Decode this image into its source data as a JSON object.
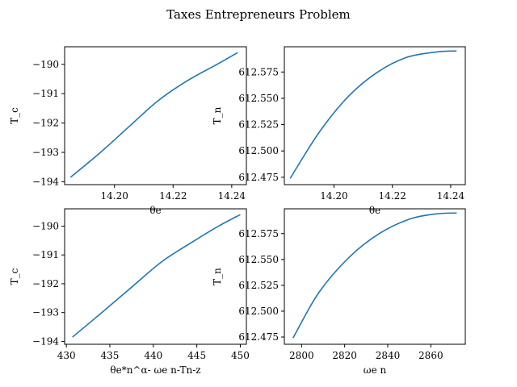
{
  "suptitle": "Taxes Entrepreneurs Problem",
  "colors": {
    "series": "#1f77b4",
    "axes": "#000000",
    "background": "#ffffff"
  },
  "chart_data": [
    {
      "type": "line",
      "xlabel": "θe",
      "ylabel": "T_c",
      "xlim": [
        14.183,
        14.245
      ],
      "ylim": [
        -194.1,
        -189.4
      ],
      "xticks": [
        "14.20",
        "14.22",
        "14.24"
      ],
      "xtick_values": [
        14.2,
        14.22,
        14.24
      ],
      "yticks": [
        "−190",
        "−191",
        "−192",
        "−193",
        "−194"
      ],
      "ytick_values": [
        -190,
        -191,
        -192,
        -193,
        -194
      ],
      "grid": false,
      "series": [
        {
          "x": [
            14.185,
            14.195,
            14.205,
            14.215,
            14.225,
            14.235,
            14.242
          ],
          "y": [
            -193.85,
            -193.02,
            -192.12,
            -191.23,
            -190.55,
            -190.0,
            -189.6
          ]
        }
      ]
    },
    {
      "type": "line",
      "xlabel": "θe",
      "ylabel": "T_n",
      "xlim": [
        14.183,
        14.245
      ],
      "ylim": [
        612.468,
        612.599
      ],
      "xticks": [
        "14.20",
        "14.22",
        "14.24"
      ],
      "xtick_values": [
        14.2,
        14.22,
        14.24
      ],
      "yticks": [
        "612.575",
        "612.550",
        "612.525",
        "612.500",
        "612.475"
      ],
      "ytick_values": [
        612.575,
        612.55,
        612.525,
        612.5,
        612.475
      ],
      "grid": false,
      "series": [
        {
          "x": [
            14.185,
            14.195,
            14.205,
            14.215,
            14.225,
            14.235,
            14.242
          ],
          "y": [
            612.474,
            612.518,
            612.552,
            612.575,
            612.589,
            612.594,
            612.595
          ]
        }
      ]
    },
    {
      "type": "line",
      "xlabel": "θe*n^α- ωe n-Tn-z",
      "ylabel": "T_c",
      "xlim": [
        429.8,
        450.7
      ],
      "ylim": [
        -194.1,
        -189.4
      ],
      "xticks": [
        "430",
        "435",
        "440",
        "445",
        "450"
      ],
      "xtick_values": [
        430,
        435,
        440,
        445,
        450
      ],
      "yticks": [
        "−190",
        "−191",
        "−192",
        "−193",
        "−194"
      ],
      "ytick_values": [
        -190,
        -191,
        -192,
        -193,
        -194
      ],
      "grid": false,
      "series": [
        {
          "x": [
            430.7,
            434.0,
            437.5,
            441.0,
            444.5,
            447.5,
            450.0
          ],
          "y": [
            -193.85,
            -193.02,
            -192.12,
            -191.23,
            -190.55,
            -190.0,
            -189.6
          ]
        }
      ]
    },
    {
      "type": "line",
      "xlabel": "ωe n",
      "ylabel": "T_n",
      "xlim": [
        2792,
        2876
      ],
      "ylim": [
        612.468,
        612.599
      ],
      "xticks": [
        "2800",
        "2820",
        "2840",
        "2860"
      ],
      "xtick_values": [
        2800,
        2820,
        2840,
        2860
      ],
      "yticks": [
        "612.575",
        "612.550",
        "612.525",
        "612.500",
        "612.475"
      ],
      "ytick_values": [
        612.575,
        612.55,
        612.525,
        612.5,
        612.475
      ],
      "grid": false,
      "series": [
        {
          "x": [
            2796,
            2808,
            2822,
            2836,
            2850,
            2862,
            2872
          ],
          "y": [
            612.474,
            612.518,
            612.552,
            612.575,
            612.589,
            612.594,
            612.595
          ]
        }
      ]
    }
  ]
}
